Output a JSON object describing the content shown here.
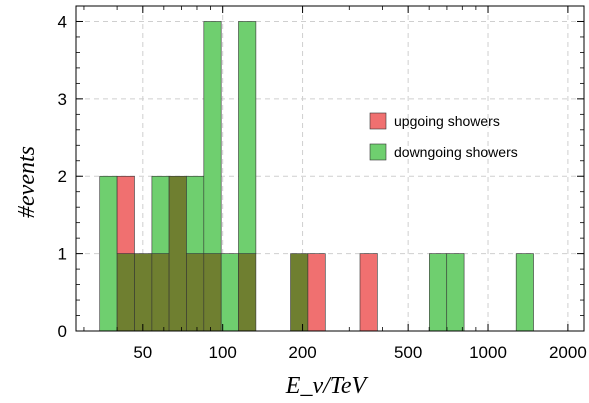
{
  "chart_data": {
    "type": "bar",
    "title": "",
    "xlabel": "E_ν/TeV",
    "ylabel": "#events",
    "xscale": "log",
    "xlim": [
      28,
      2300
    ],
    "ylim": [
      0,
      4.2
    ],
    "x_ticks": [
      50,
      100,
      200,
      500,
      1000,
      2000
    ],
    "x_tick_labels": [
      "50",
      "100",
      "200",
      "500",
      "1000",
      "2000"
    ],
    "y_ticks": [
      0,
      1,
      2,
      3,
      4
    ],
    "y_tick_labels": [
      "0",
      "1",
      "2",
      "3",
      "4"
    ],
    "grid": true,
    "legend_position": "right",
    "bin_edges": [
      34.4,
      40.0,
      46.5,
      54.1,
      62.8,
      73.0,
      84.9,
      98.7,
      114.7,
      133.4,
      155.0,
      180.2,
      209.5,
      243.6,
      283.2,
      329.2,
      382.7,
      444.9,
      517.2,
      601.2,
      698.9,
      812.5,
      944.6,
      1098.1,
      1276.6,
      1484.1,
      1725.3,
      2005.7,
      2331.6
    ],
    "series": [
      {
        "name": "upgoing showers",
        "color": "#f07070",
        "values": [
          0,
          2,
          1,
          1,
          2,
          1,
          1,
          0,
          1,
          0,
          0,
          1,
          1,
          0,
          0,
          1,
          0,
          0,
          0,
          0,
          0,
          0,
          0,
          0,
          0,
          0,
          0,
          0
        ]
      },
      {
        "name": "downgoing showers",
        "color": "#6fcf6f",
        "values": [
          2,
          1,
          1,
          2,
          2,
          2,
          4,
          1,
          4,
          0,
          0,
          1,
          0,
          0,
          0,
          0,
          0,
          0,
          0,
          1,
          1,
          0,
          0,
          0,
          1,
          0,
          0,
          0
        ]
      }
    ],
    "overlap_color": "#6f7f30"
  }
}
